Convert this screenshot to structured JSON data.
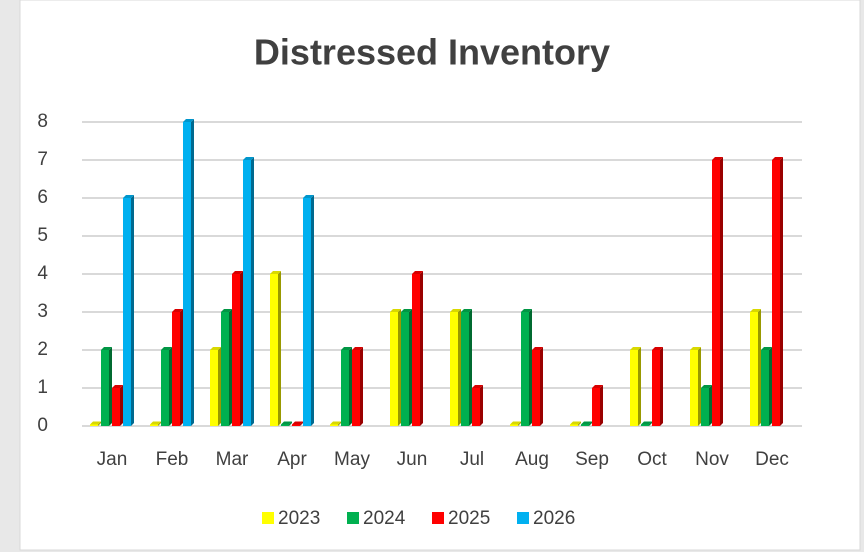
{
  "chart_data": {
    "type": "bar",
    "title": "Distressed Inventory",
    "categories": [
      "Jan",
      "Feb",
      "Mar",
      "Apr",
      "May",
      "Jun",
      "Jul",
      "Aug",
      "Sep",
      "Oct",
      "Nov",
      "Dec"
    ],
    "series": [
      {
        "name": "2023",
        "color": "#ffff00",
        "values": [
          0,
          0,
          2,
          4,
          0,
          3,
          3,
          0,
          0,
          2,
          2,
          3
        ]
      },
      {
        "name": "2024",
        "color": "#00b050",
        "values": [
          2,
          2,
          3,
          0,
          2,
          3,
          3,
          3,
          0,
          0,
          1,
          2
        ]
      },
      {
        "name": "2025",
        "color": "#ff0000",
        "values": [
          1,
          3,
          4,
          0,
          2,
          4,
          1,
          2,
          1,
          2,
          7,
          7
        ]
      },
      {
        "name": "2026",
        "color": "#00b0f0",
        "values": [
          6,
          8,
          7,
          6,
          null,
          null,
          null,
          null,
          null,
          null,
          null,
          null
        ]
      }
    ],
    "ylim": [
      0,
      8
    ],
    "yticks": [
      0,
      1,
      2,
      3,
      4,
      5,
      6,
      7,
      8
    ],
    "grid": true,
    "legend": "bottom"
  }
}
